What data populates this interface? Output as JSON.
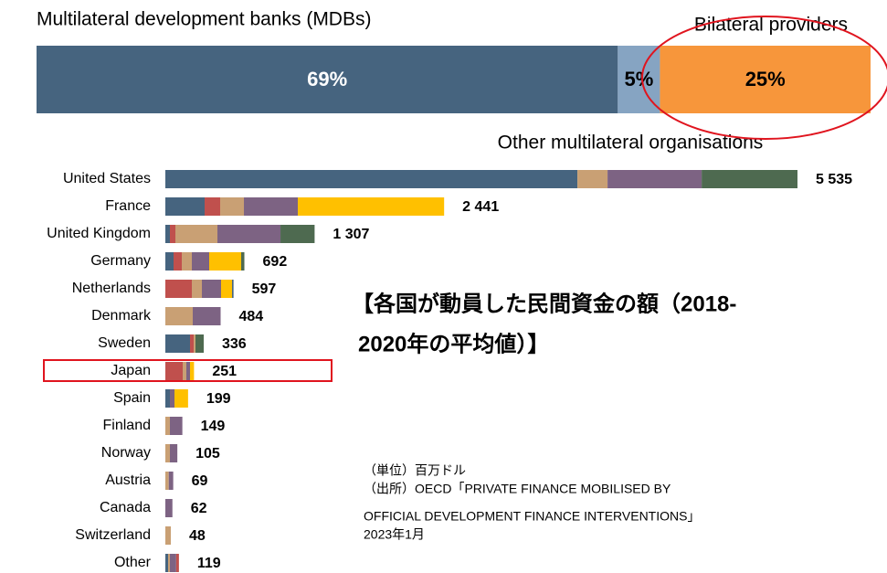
{
  "chart_data": {
    "type": "bar",
    "orientation": "horizontal",
    "share_bar": {
      "labels": [
        "Multilateral development banks (MDBs)",
        "Other multilateral organisations",
        "Bilateral providers"
      ],
      "values": [
        69,
        5,
        25
      ],
      "value_labels": [
        "69%",
        "5%",
        "25%"
      ],
      "colors": [
        "#46647f",
        "#86a4c2",
        "#f7963b"
      ]
    },
    "categories": [
      "United States",
      "France",
      "United Kingdom",
      "Germany",
      "Netherlands",
      "Denmark",
      "Sweden",
      "Japan",
      "Spain",
      "Finland",
      "Norway",
      "Austria",
      "Canada",
      "Switzerland",
      "Other"
    ],
    "values": [
      5535,
      2441,
      1307,
      692,
      597,
      484,
      336,
      251,
      199,
      149,
      105,
      69,
      62,
      48,
      119
    ],
    "value_labels": [
      "5 535",
      "2 441",
      "1 307",
      "692",
      "597",
      "484",
      "336",
      "251",
      "199",
      "149",
      "105",
      "69",
      "62",
      "48",
      "119"
    ],
    "segments": [
      [
        {
          "value": 3608,
          "color": "#46647f"
        },
        {
          "value": 264,
          "color": "#c9a074"
        },
        {
          "value": 824,
          "color": "#7d6383"
        },
        {
          "value": 839,
          "color": "#4e6a50"
        }
      ],
      [
        {
          "value": 344,
          "color": "#46647f"
        },
        {
          "value": 136,
          "color": "#c0504d"
        },
        {
          "value": 208,
          "color": "#c9a074"
        },
        {
          "value": 472,
          "color": "#7d6383"
        },
        {
          "value": 1281,
          "color": "#ffc000"
        }
      ],
      [
        {
          "value": 40,
          "color": "#46647f"
        },
        {
          "value": 48,
          "color": "#c0504d"
        },
        {
          "value": 368,
          "color": "#c9a074"
        },
        {
          "value": 552,
          "color": "#7d6383"
        },
        {
          "value": 299,
          "color": "#4e6a50"
        }
      ],
      [
        {
          "value": 72,
          "color": "#46647f"
        },
        {
          "value": 72,
          "color": "#c0504d"
        },
        {
          "value": 88,
          "color": "#c9a074"
        },
        {
          "value": 152,
          "color": "#7d6383"
        },
        {
          "value": 280,
          "color": "#ffc000"
        },
        {
          "value": 28,
          "color": "#4e6a50"
        }
      ],
      [
        {
          "value": 232,
          "color": "#c0504d"
        },
        {
          "value": 88,
          "color": "#c9a074"
        },
        {
          "value": 168,
          "color": "#7d6383"
        },
        {
          "value": 96,
          "color": "#ffc000"
        },
        {
          "value": 13,
          "color": "#46647f"
        }
      ],
      [
        {
          "value": 240,
          "color": "#c9a074"
        },
        {
          "value": 244,
          "color": "#7d6383"
        }
      ],
      [
        {
          "value": 216,
          "color": "#46647f"
        },
        {
          "value": 32,
          "color": "#c0504d"
        },
        {
          "value": 16,
          "color": "#c9a074"
        },
        {
          "value": 72,
          "color": "#4e6a50"
        }
      ],
      [
        {
          "value": 152,
          "color": "#c0504d"
        },
        {
          "value": 32,
          "color": "#c9a074"
        },
        {
          "value": 32,
          "color": "#7d6383"
        },
        {
          "value": 35,
          "color": "#ffc000"
        }
      ],
      [
        {
          "value": 40,
          "color": "#46647f"
        },
        {
          "value": 40,
          "color": "#7d6383"
        },
        {
          "value": 119,
          "color": "#ffc000"
        }
      ],
      [
        {
          "value": 40,
          "color": "#c9a074"
        },
        {
          "value": 109,
          "color": "#7d6383"
        }
      ],
      [
        {
          "value": 40,
          "color": "#c9a074"
        },
        {
          "value": 65,
          "color": "#7d6383"
        }
      ],
      [
        {
          "value": 30,
          "color": "#c9a074"
        },
        {
          "value": 39,
          "color": "#7d6383"
        }
      ],
      [
        {
          "value": 62,
          "color": "#7d6383"
        }
      ],
      [
        {
          "value": 48,
          "color": "#c9a074"
        }
      ],
      [
        {
          "value": 24,
          "color": "#46647f"
        },
        {
          "value": 16,
          "color": "#c9a074"
        },
        {
          "value": 55,
          "color": "#7d6383"
        },
        {
          "value": 24,
          "color": "#c0504d"
        }
      ]
    ],
    "annotation": {
      "title_lines": [
        "【各国が動員した民間資金の額（2018-",
        "2020年の平均値）】"
      ],
      "notes": [
        "（単位）百万ドル",
        "（出所）OECD「PRIVATE FINANCE MOBILISED BY",
        "OFFICIAL DEVELOPMENT FINANCE INTERVENTIONS」",
        "2023年1月"
      ]
    }
  }
}
